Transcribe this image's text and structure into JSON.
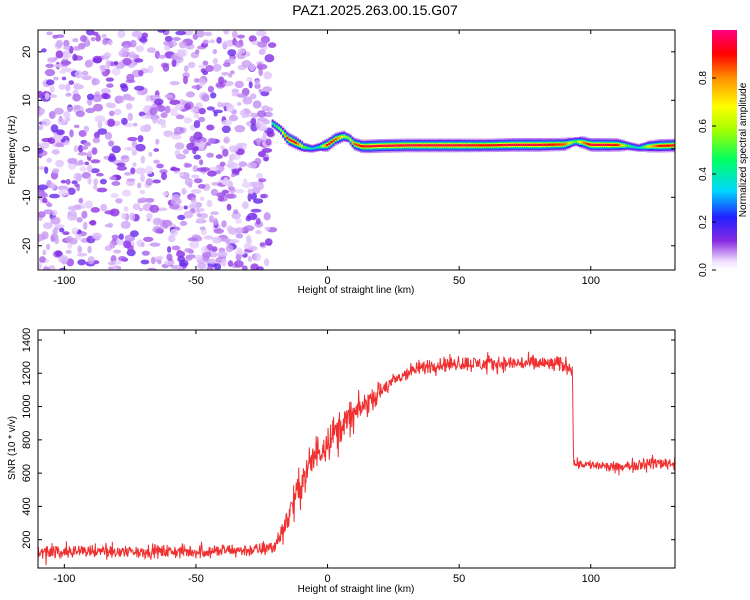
{
  "title": "PAZ1.2025.263.00.15.G07",
  "chart_data": [
    {
      "type": "heatmap",
      "name": "spectrogram",
      "xlabel": "Height of straight line (km)",
      "ylabel": "Frequency (Hz)",
      "xlim": [
        -110,
        132
      ],
      "ylim": [
        -25,
        24.5
      ],
      "xticks": [
        -100,
        -50,
        0,
        50,
        100
      ],
      "yticks": [
        20,
        10,
        0,
        -10,
        -20
      ],
      "xtick_labels": [
        "-100",
        "-50",
        "0",
        "50",
        "100"
      ],
      "ytick_labels": [
        "20",
        "10",
        "0",
        "-10",
        "-20"
      ],
      "noise_region_x": [
        -110,
        -21
      ],
      "noise_amplitude": 0.1,
      "ridge": {
        "x": [
          -21,
          -18,
          -15,
          -12,
          -9,
          -6,
          -3,
          0,
          3,
          6,
          8,
          10,
          13,
          16,
          20,
          30,
          40,
          50,
          60,
          70,
          80,
          90,
          94,
          97,
          100,
          105,
          110,
          114,
          118,
          122,
          126,
          132
        ],
        "freq": [
          5.2,
          4.0,
          2.0,
          1.2,
          0.3,
          0.0,
          0.4,
          0.8,
          2.0,
          2.6,
          2.2,
          1.0,
          0.5,
          0.5,
          0.6,
          0.7,
          0.7,
          0.7,
          0.7,
          0.8,
          0.8,
          0.9,
          1.5,
          1.3,
          0.8,
          0.8,
          0.8,
          0.6,
          0.2,
          0.5,
          0.6,
          0.7
        ],
        "amplitude": [
          0.45,
          0.55,
          0.95,
          0.9,
          0.55,
          0.35,
          0.45,
          0.95,
          0.85,
          0.65,
          0.55,
          0.85,
          0.9,
          0.95,
          0.95,
          0.95,
          0.95,
          0.95,
          0.9,
          0.95,
          0.95,
          0.85,
          0.5,
          0.8,
          0.95,
          0.95,
          0.9,
          0.5,
          0.35,
          0.7,
          0.9,
          0.9
        ]
      },
      "colorbar": {
        "label": "Normalized spectral amplitude",
        "range": [
          0.0,
          1.0
        ],
        "ticks": [
          0.0,
          0.2,
          0.4,
          0.6,
          0.8
        ],
        "tick_labels": [
          "0.0",
          "0.2",
          "0.4",
          "0.6",
          "0.8"
        ],
        "colormap": "rainbow"
      }
    },
    {
      "type": "line",
      "name": "snr",
      "xlabel": "Height of straight line (km)",
      "ylabel": "SNR (10 * v/v)",
      "xlim": [
        -110,
        132
      ],
      "ylim": [
        30,
        1460
      ],
      "xticks": [
        -100,
        -50,
        0,
        50,
        100
      ],
      "yticks": [
        200,
        400,
        600,
        800,
        1000,
        1200,
        1400
      ],
      "xtick_labels": [
        "-100",
        "-50",
        "0",
        "50",
        "100"
      ],
      "ytick_labels": [
        "200",
        "400",
        "600",
        "800",
        "1000",
        "1200",
        "1400"
      ],
      "color": "#f03030",
      "series": {
        "x": [
          -110,
          -80,
          -50,
          -25,
          -20,
          -17,
          -14,
          -10,
          -5,
          0,
          5,
          10,
          15,
          20,
          25,
          30,
          35,
          40,
          50,
          60,
          70,
          80,
          90,
          93,
          93.5,
          100,
          110,
          120,
          132
        ],
        "y": [
          130,
          130,
          128,
          140,
          160,
          260,
          380,
          540,
          700,
          800,
          880,
          950,
          1020,
          1090,
          1150,
          1200,
          1230,
          1250,
          1260,
          1255,
          1260,
          1260,
          1250,
          1235,
          660,
          650,
          630,
          660,
          660
        ],
        "noise": [
          60,
          60,
          60,
          60,
          70,
          110,
          150,
          170,
          180,
          170,
          160,
          150,
          110,
          90,
          70,
          70,
          70,
          70,
          70,
          70,
          70,
          75,
          75,
          75,
          45,
          45,
          50,
          60,
          60
        ]
      }
    }
  ]
}
